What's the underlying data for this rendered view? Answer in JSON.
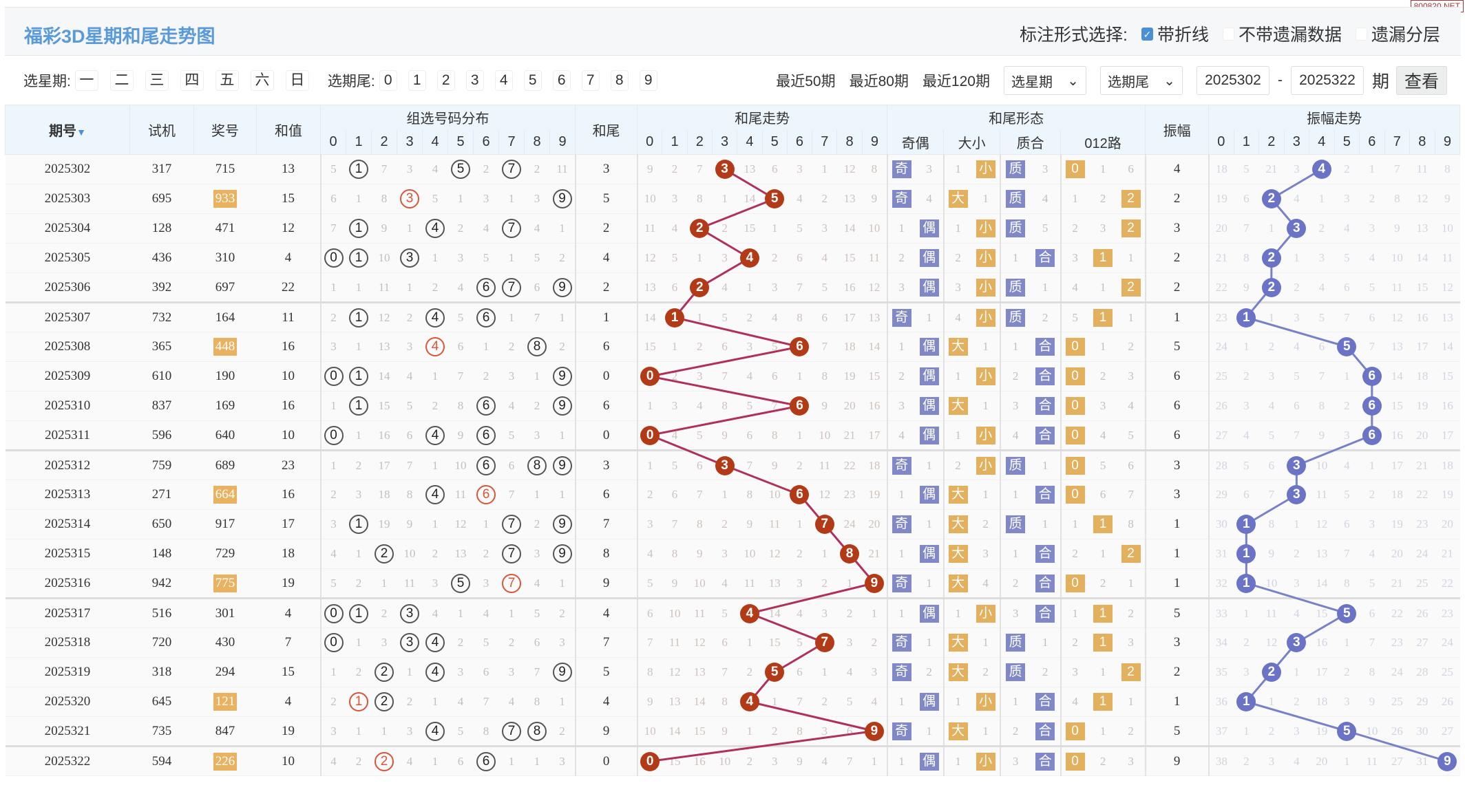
{
  "watermark": "800820.NET",
  "title": "福彩3D星期和尾走势图",
  "options": {
    "label": "标注形式选择:",
    "items": [
      {
        "label": "带折线",
        "checked": true
      },
      {
        "label": "不带遗漏数据",
        "checked": false
      },
      {
        "label": "遗漏分层",
        "checked": false
      }
    ]
  },
  "filter": {
    "week_label": "选星期:",
    "weeks": [
      "一",
      "二",
      "三",
      "四",
      "五",
      "六",
      "日"
    ],
    "tail_label": "选期尾:",
    "tails": [
      "0",
      "1",
      "2",
      "3",
      "4",
      "5",
      "6",
      "7",
      "8",
      "9"
    ],
    "recent": [
      "最近50期",
      "最近80期",
      "最近120期"
    ],
    "week_select": "选星期",
    "tail_select": "选期尾",
    "from": "2025302",
    "dash": "-",
    "to": "2025322",
    "qi": "期",
    "go": "查看"
  },
  "headers": {
    "issue": "期号",
    "test": "试机",
    "draw": "奖号",
    "sum": "和值",
    "dist": "组选号码分布",
    "tail": "和尾",
    "trend": "和尾走势",
    "form": "和尾形态",
    "amp": "振幅",
    "amp_trend": "振幅走势",
    "form_sub": [
      "奇偶",
      "大小",
      "质合",
      "012路"
    ],
    "digits": [
      "0",
      "1",
      "2",
      "3",
      "4",
      "5",
      "6",
      "7",
      "8",
      "9"
    ]
  },
  "colors": {
    "title": "#5a9ad8",
    "trend_ball": "#b33a17",
    "trend_line": "#b0305a",
    "amp_ball": "#6a73c6",
    "amp_line": "#7880c8",
    "badge_purple": "#8088c8",
    "badge_orange": "#e3b05e"
  },
  "rows": [
    {
      "issue": "2025302",
      "test": "317",
      "draw": "715",
      "sum": "13",
      "dist": [
        "5",
        "1",
        "7",
        "3",
        "4",
        "5",
        "2",
        "7",
        "2",
        "11"
      ],
      "tail": "3",
      "trend": [
        "9",
        "2",
        "7",
        "3",
        "13",
        "6",
        "3",
        "1",
        "12",
        "8"
      ],
      "form": [
        "奇",
        "3",
        "1",
        "小",
        "质",
        "3",
        "0",
        "1",
        "6"
      ],
      "amp": "4",
      "amp_trend": [
        "18",
        "5",
        "21",
        "3",
        "4",
        "2",
        "1",
        "7",
        "11",
        "8"
      ]
    },
    {
      "issue": "2025303",
      "test": "695",
      "draw": "933",
      "sum": "15",
      "dist": [
        "6",
        "1",
        "8",
        "3",
        "5",
        "1",
        "3",
        "1",
        "3",
        "9"
      ],
      "tail": "5",
      "trend": [
        "10",
        "3",
        "8",
        "1",
        "14",
        "5",
        "4",
        "2",
        "13",
        "9"
      ],
      "form": [
        "奇",
        "4",
        "大",
        "1",
        "质",
        "4",
        "1",
        "2",
        "2"
      ],
      "amp": "2",
      "amp_trend": [
        "19",
        "6",
        "2",
        "4",
        "1",
        "3",
        "2",
        "8",
        "12",
        "9"
      ]
    },
    {
      "issue": "2025304",
      "test": "128",
      "draw": "471",
      "sum": "12",
      "dist": [
        "7",
        "1",
        "9",
        "1",
        "4",
        "2",
        "4",
        "7",
        "4",
        "1"
      ],
      "tail": "2",
      "trend": [
        "11",
        "4",
        "2",
        "2",
        "15",
        "1",
        "5",
        "3",
        "14",
        "10"
      ],
      "form": [
        "1",
        "偶",
        "1",
        "小",
        "质",
        "5",
        "2",
        "3",
        "2"
      ],
      "amp": "3",
      "amp_trend": [
        "20",
        "7",
        "1",
        "3",
        "2",
        "4",
        "3",
        "9",
        "13",
        "10"
      ]
    },
    {
      "issue": "2025305",
      "test": "436",
      "draw": "310",
      "sum": "4",
      "dist": [
        "0",
        "1",
        "10",
        "3",
        "1",
        "3",
        "5",
        "1",
        "5",
        "2"
      ],
      "tail": "4",
      "trend": [
        "12",
        "5",
        "1",
        "3",
        "4",
        "2",
        "6",
        "4",
        "15",
        "11"
      ],
      "form": [
        "2",
        "偶",
        "2",
        "小",
        "1",
        "合",
        "3",
        "1",
        "1"
      ],
      "amp": "2",
      "amp_trend": [
        "21",
        "8",
        "2",
        "1",
        "3",
        "5",
        "4",
        "10",
        "14",
        "11"
      ]
    },
    {
      "issue": "2025306",
      "test": "392",
      "draw": "697",
      "sum": "22",
      "dist": [
        "1",
        "1",
        "11",
        "1",
        "2",
        "4",
        "6",
        "7",
        "6",
        "9"
      ],
      "tail": "2",
      "trend": [
        "13",
        "6",
        "2",
        "4",
        "1",
        "3",
        "7",
        "5",
        "16",
        "12"
      ],
      "form": [
        "3",
        "偶",
        "3",
        "小",
        "质",
        "1",
        "4",
        "1",
        "2"
      ],
      "amp": "2",
      "amp_trend": [
        "22",
        "9",
        "2",
        "2",
        "4",
        "6",
        "5",
        "11",
        "15",
        "12"
      ]
    },
    {
      "issue": "2025307",
      "test": "732",
      "draw": "164",
      "sum": "11",
      "dist": [
        "2",
        "1",
        "12",
        "2",
        "4",
        "5",
        "6",
        "1",
        "7",
        "1"
      ],
      "tail": "1",
      "trend": [
        "14",
        "1",
        "1",
        "5",
        "2",
        "4",
        "8",
        "6",
        "17",
        "13"
      ],
      "form": [
        "奇",
        "1",
        "4",
        "小",
        "质",
        "2",
        "5",
        "1",
        "1"
      ],
      "amp": "1",
      "amp_trend": [
        "23",
        "1",
        "1",
        "3",
        "5",
        "7",
        "6",
        "12",
        "16",
        "13"
      ]
    },
    {
      "issue": "2025308",
      "test": "365",
      "draw": "448",
      "sum": "16",
      "dist": [
        "3",
        "1",
        "13",
        "3",
        "4",
        "6",
        "1",
        "2",
        "8",
        "2"
      ],
      "tail": "6",
      "trend": [
        "15",
        "1",
        "2",
        "6",
        "3",
        "5",
        "6",
        "7",
        "18",
        "14"
      ],
      "form": [
        "1",
        "偶",
        "大",
        "1",
        "1",
        "合",
        "0",
        "1",
        "2"
      ],
      "amp": "5",
      "amp_trend": [
        "24",
        "1",
        "2",
        "4",
        "6",
        "5",
        "7",
        "13",
        "17",
        "14"
      ]
    },
    {
      "issue": "2025309",
      "test": "610",
      "draw": "190",
      "sum": "10",
      "dist": [
        "0",
        "1",
        "14",
        "4",
        "1",
        "7",
        "2",
        "3",
        "1",
        "9"
      ],
      "tail": "0",
      "trend": [
        "0",
        "2",
        "3",
        "7",
        "4",
        "6",
        "1",
        "8",
        "19",
        "15"
      ],
      "form": [
        "2",
        "偶",
        "1",
        "小",
        "2",
        "合",
        "0",
        "2",
        "3"
      ],
      "amp": "6",
      "amp_trend": [
        "25",
        "2",
        "3",
        "5",
        "7",
        "1",
        "6",
        "14",
        "18",
        "15"
      ]
    },
    {
      "issue": "2025310",
      "test": "837",
      "draw": "169",
      "sum": "16",
      "dist": [
        "1",
        "1",
        "15",
        "5",
        "2",
        "8",
        "6",
        "4",
        "2",
        "9"
      ],
      "tail": "6",
      "trend": [
        "1",
        "3",
        "4",
        "8",
        "5",
        "7",
        "6",
        "9",
        "20",
        "16"
      ],
      "form": [
        "3",
        "偶",
        "大",
        "1",
        "3",
        "合",
        "0",
        "3",
        "4"
      ],
      "amp": "6",
      "amp_trend": [
        "26",
        "3",
        "4",
        "6",
        "8",
        "2",
        "6",
        "15",
        "19",
        "16"
      ]
    },
    {
      "issue": "2025311",
      "test": "596",
      "draw": "640",
      "sum": "10",
      "dist": [
        "0",
        "1",
        "16",
        "6",
        "4",
        "9",
        "6",
        "5",
        "3",
        "1"
      ],
      "tail": "0",
      "trend": [
        "0",
        "4",
        "5",
        "9",
        "6",
        "8",
        "1",
        "10",
        "21",
        "17"
      ],
      "form": [
        "4",
        "偶",
        "1",
        "小",
        "4",
        "合",
        "0",
        "4",
        "5"
      ],
      "amp": "6",
      "amp_trend": [
        "27",
        "4",
        "5",
        "7",
        "9",
        "3",
        "6",
        "16",
        "20",
        "17"
      ]
    },
    {
      "issue": "2025312",
      "test": "759",
      "draw": "689",
      "sum": "23",
      "dist": [
        "1",
        "2",
        "17",
        "7",
        "1",
        "10",
        "6",
        "6",
        "8",
        "9"
      ],
      "tail": "3",
      "trend": [
        "1",
        "5",
        "6",
        "3",
        "7",
        "9",
        "2",
        "11",
        "22",
        "18"
      ],
      "form": [
        "奇",
        "1",
        "2",
        "小",
        "质",
        "1",
        "0",
        "5",
        "6"
      ],
      "amp": "3",
      "amp_trend": [
        "28",
        "5",
        "6",
        "3",
        "10",
        "4",
        "1",
        "17",
        "21",
        "18"
      ]
    },
    {
      "issue": "2025313",
      "test": "271",
      "draw": "664",
      "sum": "16",
      "dist": [
        "2",
        "3",
        "18",
        "8",
        "4",
        "11",
        "6",
        "7",
        "1",
        "1"
      ],
      "tail": "6",
      "trend": [
        "2",
        "6",
        "7",
        "1",
        "8",
        "10",
        "6",
        "12",
        "23",
        "19"
      ],
      "form": [
        "1",
        "偶",
        "大",
        "1",
        "1",
        "合",
        "0",
        "6",
        "7"
      ],
      "amp": "3",
      "amp_trend": [
        "29",
        "6",
        "7",
        "3",
        "11",
        "5",
        "2",
        "18",
        "22",
        "19"
      ]
    },
    {
      "issue": "2025314",
      "test": "650",
      "draw": "917",
      "sum": "17",
      "dist": [
        "3",
        "1",
        "19",
        "9",
        "1",
        "12",
        "1",
        "7",
        "2",
        "9"
      ],
      "tail": "7",
      "trend": [
        "3",
        "7",
        "8",
        "2",
        "9",
        "11",
        "1",
        "7",
        "24",
        "20"
      ],
      "form": [
        "奇",
        "1",
        "大",
        "2",
        "质",
        "1",
        "1",
        "1",
        "8"
      ],
      "amp": "1",
      "amp_trend": [
        "30",
        "1",
        "8",
        "1",
        "12",
        "6",
        "3",
        "19",
        "23",
        "20"
      ]
    },
    {
      "issue": "2025315",
      "test": "148",
      "draw": "729",
      "sum": "18",
      "dist": [
        "4",
        "1",
        "2",
        "10",
        "2",
        "13",
        "2",
        "7",
        "3",
        "9"
      ],
      "tail": "8",
      "trend": [
        "4",
        "8",
        "9",
        "3",
        "10",
        "12",
        "2",
        "1",
        "8",
        "21"
      ],
      "form": [
        "1",
        "偶",
        "大",
        "3",
        "1",
        "合",
        "2",
        "1",
        "2"
      ],
      "amp": "1",
      "amp_trend": [
        "31",
        "1",
        "9",
        "2",
        "13",
        "7",
        "4",
        "20",
        "24",
        "21"
      ]
    },
    {
      "issue": "2025316",
      "test": "942",
      "draw": "775",
      "sum": "19",
      "dist": [
        "5",
        "2",
        "1",
        "11",
        "3",
        "5",
        "3",
        "7",
        "4",
        "1"
      ],
      "tail": "9",
      "trend": [
        "5",
        "9",
        "10",
        "4",
        "11",
        "13",
        "3",
        "2",
        "1",
        "9"
      ],
      "form": [
        "奇",
        "1",
        "大",
        "4",
        "2",
        "合",
        "0",
        "2",
        "1"
      ],
      "amp": "1",
      "amp_trend": [
        "32",
        "1",
        "10",
        "3",
        "14",
        "8",
        "5",
        "21",
        "25",
        "22"
      ]
    },
    {
      "issue": "2025317",
      "test": "516",
      "draw": "301",
      "sum": "4",
      "dist": [
        "0",
        "1",
        "2",
        "3",
        "4",
        "1",
        "4",
        "1",
        "5",
        "2"
      ],
      "tail": "4",
      "trend": [
        "6",
        "10",
        "11",
        "5",
        "4",
        "14",
        "4",
        "3",
        "2",
        "1"
      ],
      "form": [
        "1",
        "偶",
        "1",
        "小",
        "3",
        "合",
        "1",
        "1",
        "2"
      ],
      "amp": "5",
      "amp_trend": [
        "33",
        "1",
        "11",
        "4",
        "15",
        "5",
        "6",
        "22",
        "26",
        "23"
      ]
    },
    {
      "issue": "2025318",
      "test": "720",
      "draw": "430",
      "sum": "7",
      "dist": [
        "0",
        "1",
        "3",
        "3",
        "4",
        "2",
        "5",
        "2",
        "6",
        "3"
      ],
      "tail": "7",
      "trend": [
        "7",
        "11",
        "12",
        "6",
        "1",
        "15",
        "5",
        "7",
        "3",
        "2"
      ],
      "form": [
        "奇",
        "1",
        "大",
        "1",
        "质",
        "1",
        "2",
        "1",
        "3"
      ],
      "amp": "3",
      "amp_trend": [
        "34",
        "2",
        "12",
        "3",
        "16",
        "1",
        "7",
        "23",
        "27",
        "24"
      ]
    },
    {
      "issue": "2025319",
      "test": "318",
      "draw": "294",
      "sum": "15",
      "dist": [
        "1",
        "2",
        "2",
        "1",
        "4",
        "3",
        "6",
        "3",
        "7",
        "9"
      ],
      "tail": "5",
      "trend": [
        "8",
        "12",
        "13",
        "7",
        "2",
        "5",
        "6",
        "1",
        "4",
        "3"
      ],
      "form": [
        "奇",
        "2",
        "大",
        "2",
        "质",
        "2",
        "3",
        "1",
        "2"
      ],
      "amp": "2",
      "amp_trend": [
        "35",
        "3",
        "2",
        "1",
        "17",
        "2",
        "8",
        "24",
        "28",
        "25"
      ]
    },
    {
      "issue": "2025320",
      "test": "645",
      "draw": "121",
      "sum": "4",
      "dist": [
        "2",
        "1",
        "2",
        "2",
        "1",
        "4",
        "7",
        "4",
        "8",
        "1"
      ],
      "tail": "4",
      "trend": [
        "9",
        "13",
        "14",
        "8",
        "4",
        "1",
        "7",
        "2",
        "5",
        "4"
      ],
      "form": [
        "1",
        "偶",
        "1",
        "小",
        "1",
        "合",
        "4",
        "1",
        "1"
      ],
      "amp": "1",
      "amp_trend": [
        "36",
        "1",
        "1",
        "2",
        "18",
        "3",
        "9",
        "25",
        "29",
        "26"
      ]
    },
    {
      "issue": "2025321",
      "test": "735",
      "draw": "847",
      "sum": "19",
      "dist": [
        "3",
        "1",
        "1",
        "3",
        "4",
        "5",
        "8",
        "7",
        "8",
        "2"
      ],
      "tail": "9",
      "trend": [
        "10",
        "14",
        "15",
        "9",
        "1",
        "2",
        "8",
        "3",
        "6",
        "9"
      ],
      "form": [
        "奇",
        "1",
        "大",
        "1",
        "2",
        "合",
        "0",
        "1",
        "2"
      ],
      "amp": "5",
      "amp_trend": [
        "37",
        "1",
        "2",
        "3",
        "19",
        "5",
        "10",
        "26",
        "30",
        "27"
      ]
    },
    {
      "issue": "2025322",
      "test": "594",
      "draw": "226",
      "sum": "10",
      "dist": [
        "4",
        "2",
        "2",
        "4",
        "1",
        "6",
        "6",
        "1",
        "1",
        "3"
      ],
      "tail": "0",
      "trend": [
        "0",
        "15",
        "16",
        "10",
        "2",
        "3",
        "9",
        "4",
        "7",
        "1"
      ],
      "form": [
        "1",
        "偶",
        "1",
        "小",
        "3",
        "合",
        "0",
        "2",
        "3"
      ],
      "amp": "9",
      "amp_trend": [
        "38",
        "2",
        "3",
        "4",
        "20",
        "1",
        "11",
        "27",
        "31",
        "9"
      ]
    }
  ]
}
